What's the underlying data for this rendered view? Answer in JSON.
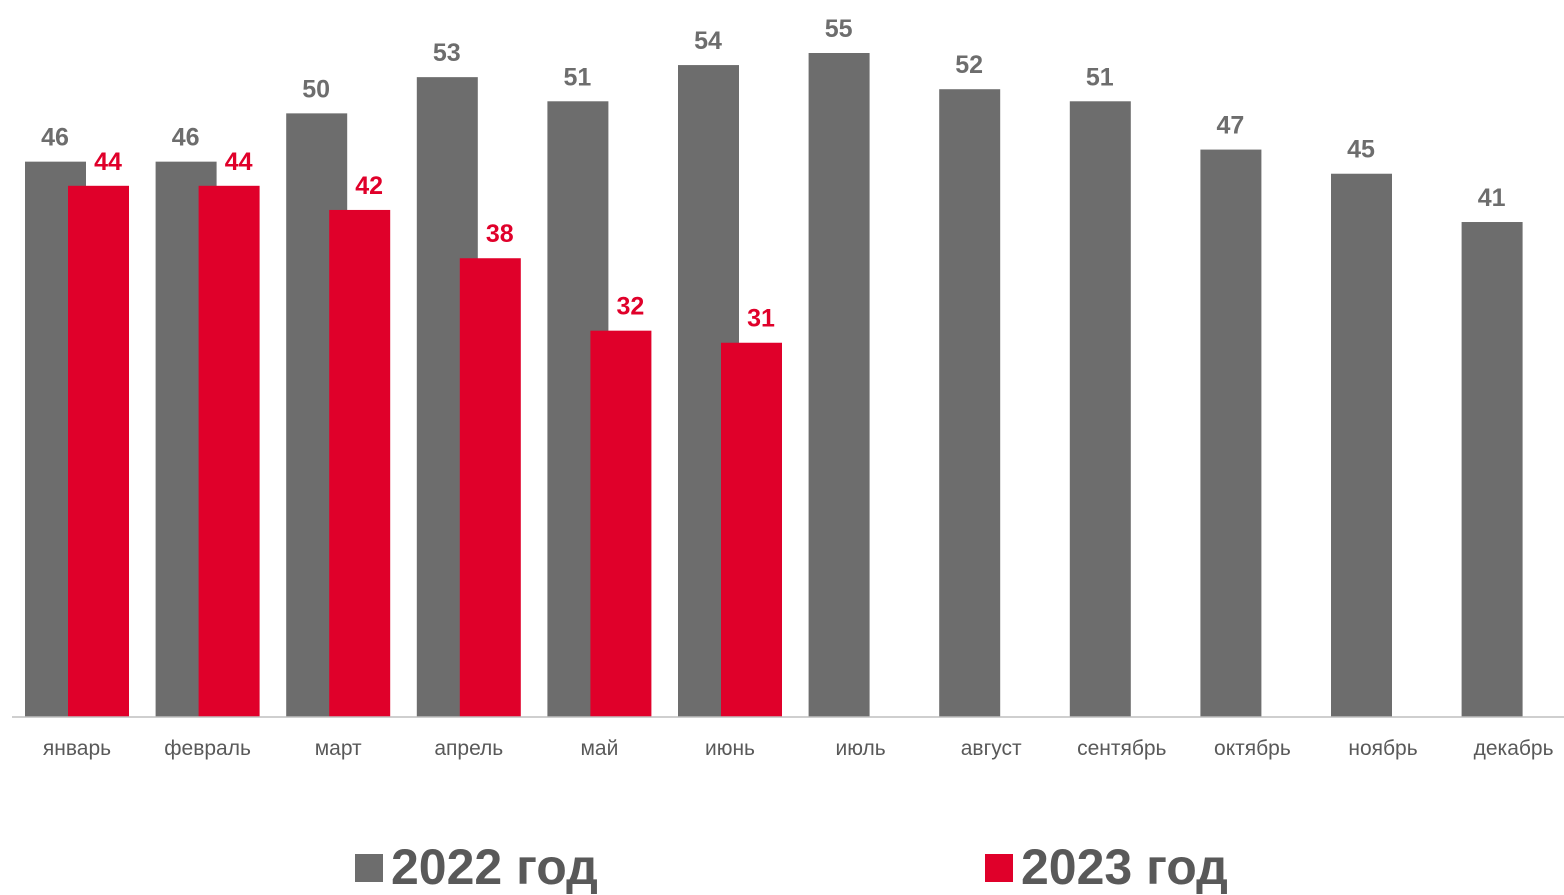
{
  "chart_data": {
    "type": "bar",
    "categories": [
      "январь",
      "февраль",
      "март",
      "апрель",
      "май",
      "июнь",
      "июль",
      "август",
      "сентябрь",
      "октябрь",
      "ноябрь",
      "декабрь"
    ],
    "series": [
      {
        "name": "2022 год",
        "color": "#6d6d6d",
        "label_color": "#6d6d6d",
        "values": [
          46,
          46,
          50,
          53,
          51,
          54,
          55,
          52,
          51,
          47,
          45,
          41
        ]
      },
      {
        "name": "2023 год",
        "color": "#e0002a",
        "label_color": "#e0002a",
        "values": [
          44,
          44,
          42,
          38,
          32,
          31,
          null,
          null,
          null,
          null,
          null,
          null
        ]
      }
    ],
    "ylim": [
      0,
      55
    ],
    "grid": false,
    "legend_position": "bottom"
  }
}
